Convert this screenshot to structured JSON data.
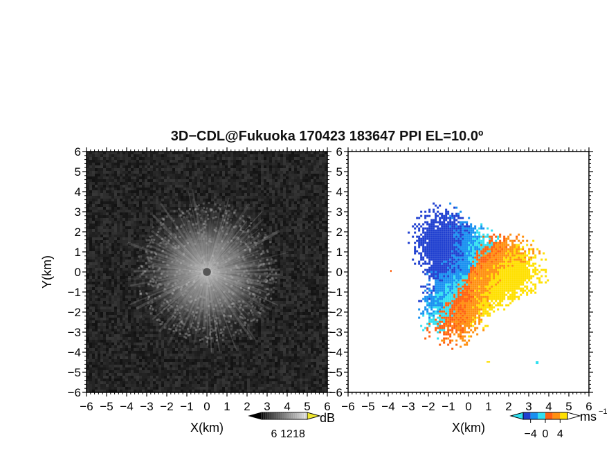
{
  "figure": {
    "title": "3D−CDL@Fukuoka 170423 183647 PPI EL=10.0º"
  },
  "chart_data": [
    {
      "type": "heatmap",
      "panel": "left",
      "xlabel": "X(km)",
      "ylabel": "Y(km)",
      "xlim": [
        -6,
        6
      ],
      "ylim": [
        -6,
        6
      ],
      "x_ticks": [
        "−6",
        "−5",
        "−4",
        "−3",
        "−2",
        "−1",
        "0",
        "1",
        "2",
        "3",
        "4",
        "5",
        "6"
      ],
      "y_ticks": [
        "6",
        "5",
        "4",
        "3",
        "2",
        "1",
        "0",
        "−1",
        "−2",
        "−3",
        "−4",
        "−5",
        "−6"
      ],
      "colorbar": {
        "unit": "dB",
        "ticks": [
          "6",
          "12",
          "18"
        ],
        "tick_values": [
          6,
          12,
          18
        ],
        "range": [
          0,
          22
        ],
        "colormap": [
          "#000000",
          "#ffffff"
        ],
        "over_color": "#f0e830"
      },
      "field": {
        "description_colors": [
          "#1a1a1a",
          "#c8c8c8"
        ],
        "center": [
          0,
          0
        ],
        "bright_radius_km": 3.5,
        "center_hole_radius_km": 0.2
      }
    },
    {
      "type": "heatmap",
      "panel": "right",
      "xlabel": "X(km)",
      "xlim": [
        -6,
        6
      ],
      "ylim": [
        -6,
        6
      ],
      "x_ticks": [
        "−6",
        "−5",
        "−4",
        "−3",
        "−2",
        "−1",
        "0",
        "1",
        "2",
        "3",
        "4",
        "5",
        "6"
      ],
      "y_ticks": [
        "6",
        "5",
        "4",
        "3",
        "2",
        "1",
        "0",
        "−1",
        "−2",
        "−3",
        "−4",
        "−5",
        "−6"
      ],
      "colorbar": {
        "unit": "ms",
        "unit_exponent": "−1",
        "ticks": [
          "−4",
          "0",
          "4"
        ],
        "tick_values": [
          -4,
          0,
          4
        ],
        "range": [
          -6,
          6
        ],
        "colors": [
          "#2040d0",
          "#1890f0",
          "#30e0f0",
          "#ff6010",
          "#ff9010",
          "#ffe000"
        ]
      },
      "field": {
        "negative_direction_deg": 150,
        "max_radius_km": 3.6,
        "values_range": [
          -6,
          6
        ]
      }
    }
  ]
}
